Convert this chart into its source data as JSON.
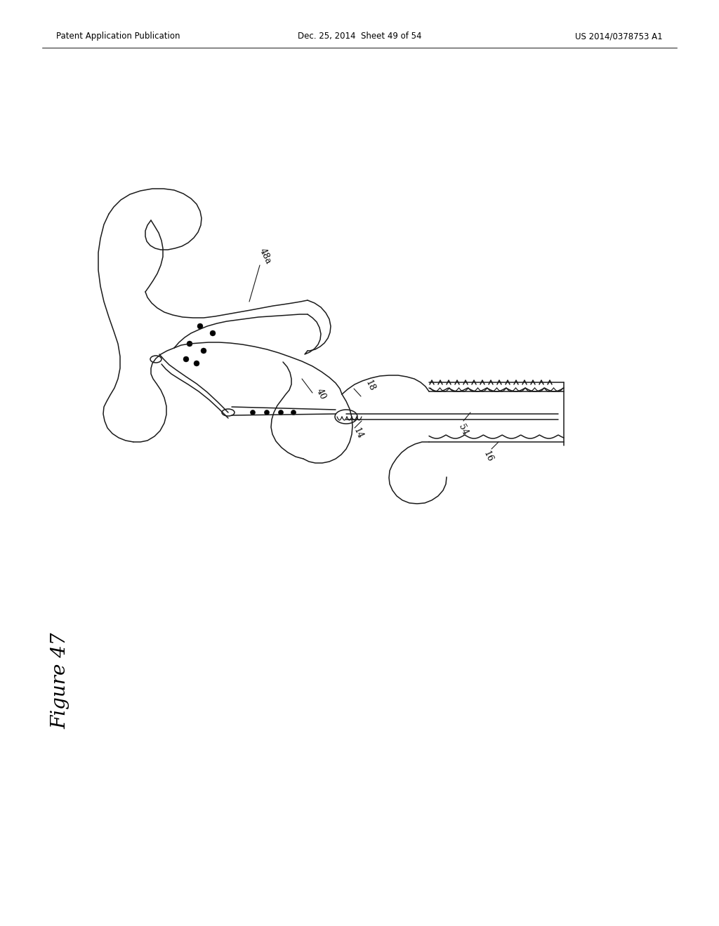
{
  "background_color": "#ffffff",
  "header_left": "Patent Application Publication",
  "header_center": "Dec. 25, 2014  Sheet 49 of 54",
  "header_right": "US 2014/0378753 A1",
  "figure_label": "Figure 47",
  "line_color": "#1a1a1a",
  "line_width": 1.1
}
